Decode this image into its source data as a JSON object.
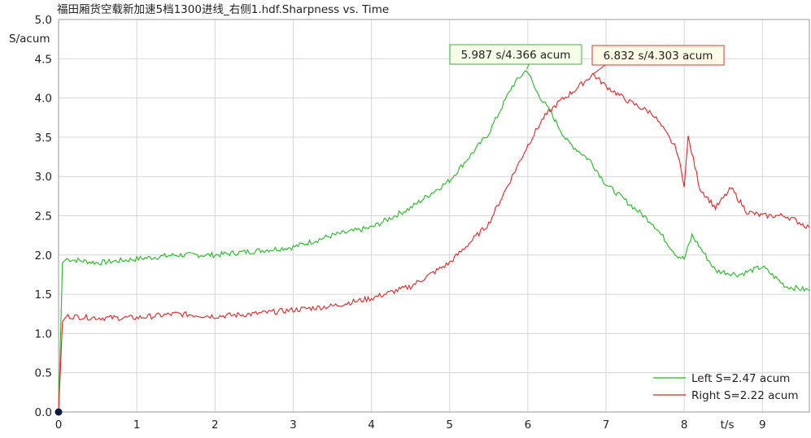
{
  "chart_data": {
    "type": "line",
    "title": "福田厢货空载新加速5档1300进线_右侧1.hdf.Sharpness vs. Time",
    "ylabel": "S/acum",
    "xlabel": "t/s",
    "xlim": [
      0,
      9.6
    ],
    "ylim": [
      0,
      5.0
    ],
    "xticks": [
      "0",
      "1",
      "2",
      "3",
      "4",
      "5",
      "6",
      "7",
      "8",
      "9"
    ],
    "yticks": [
      "0.0",
      "0.5",
      "1.0",
      "1.5",
      "2.0",
      "2.5",
      "3.0",
      "3.5",
      "4.0",
      "4.5",
      "5.0"
    ],
    "grid": true,
    "legend_position": "bottom-right",
    "series": [
      {
        "name": "Left S=2.47 acum",
        "color": "#22bb22",
        "x": [
          0,
          0.05,
          0.1,
          0.5,
          1.0,
          1.5,
          2.0,
          2.5,
          3.0,
          3.5,
          4.0,
          4.5,
          5.0,
          5.5,
          5.8,
          5.987,
          6.1,
          6.3,
          6.5,
          6.8,
          7.0,
          7.3,
          7.6,
          7.9,
          8.0,
          8.1,
          8.4,
          8.7,
          9.0,
          9.3,
          9.6
        ],
        "y": [
          0,
          1.9,
          1.95,
          1.9,
          1.95,
          2.0,
          2.0,
          2.05,
          2.1,
          2.25,
          2.35,
          2.6,
          2.95,
          3.55,
          4.15,
          4.366,
          4.1,
          3.8,
          3.45,
          3.2,
          2.9,
          2.65,
          2.4,
          2.0,
          1.95,
          2.25,
          1.8,
          1.75,
          1.85,
          1.6,
          1.55
        ]
      },
      {
        "name": "Right S=2.22 acum",
        "color": "#ee2222",
        "x": [
          0,
          0.05,
          0.1,
          0.5,
          1.0,
          1.5,
          2.0,
          2.5,
          3.0,
          3.5,
          4.0,
          4.5,
          5.0,
          5.5,
          5.8,
          6.0,
          6.2,
          6.4,
          6.6,
          6.832,
          7.0,
          7.3,
          7.6,
          7.9,
          8.0,
          8.05,
          8.2,
          8.4,
          8.6,
          8.8,
          9.0,
          9.3,
          9.6
        ],
        "y": [
          0,
          1.15,
          1.22,
          1.2,
          1.2,
          1.25,
          1.22,
          1.25,
          1.3,
          1.35,
          1.45,
          1.6,
          1.9,
          2.4,
          3.0,
          3.4,
          3.75,
          3.95,
          4.1,
          4.303,
          4.15,
          3.95,
          3.8,
          3.35,
          2.9,
          3.5,
          2.85,
          2.6,
          2.85,
          2.55,
          2.5,
          2.5,
          2.35
        ]
      }
    ],
    "annotations": [
      {
        "text": "5.987 s/4.366 acum",
        "x": 5.987,
        "y": 4.366,
        "series": "Left S=2.47 acum"
      },
      {
        "text": "6.832 s/4.303 acum",
        "x": 6.832,
        "y": 4.303,
        "series": "Right S=2.22 acum"
      }
    ]
  }
}
